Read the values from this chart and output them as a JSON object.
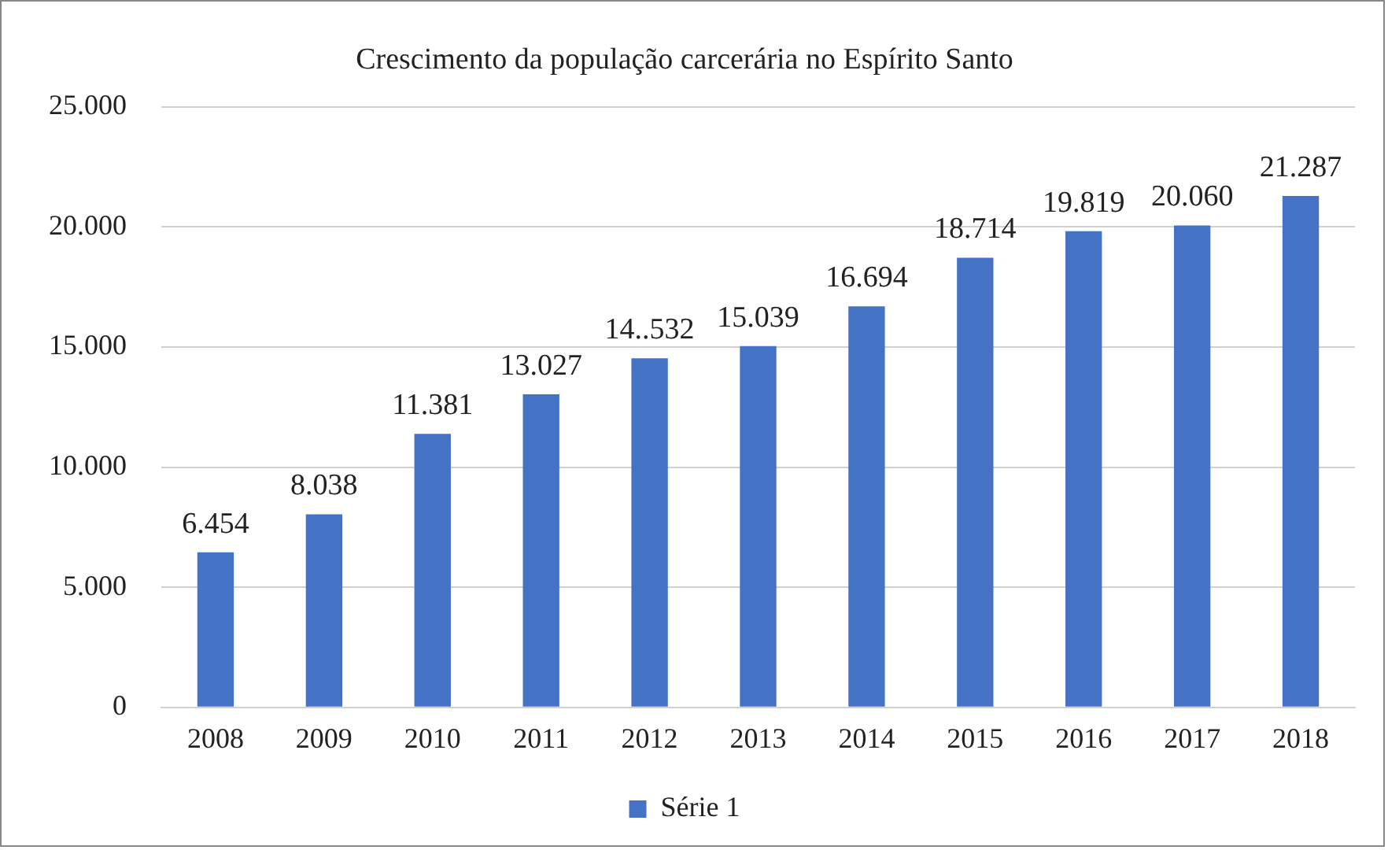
{
  "chart_data": {
    "type": "bar",
    "title": "Crescimento da população carcerária no Espírito Santo",
    "categories": [
      "2008",
      "2009",
      "2010",
      "2011",
      "2012",
      "2013",
      "2014",
      "2015",
      "2016",
      "2017",
      "2018"
    ],
    "series": [
      {
        "name": "Série 1",
        "color": "#4472c4",
        "values": [
          6454,
          8038,
          11381,
          13027,
          14532,
          15039,
          16694,
          18714,
          19819,
          20060,
          21287
        ],
        "value_labels": [
          "6.454",
          "8.038",
          "11.381",
          "13.027",
          "14..532",
          "15.039",
          "16.694",
          "18.714",
          "19.819",
          "20.060",
          "21.287"
        ]
      }
    ],
    "ylim": [
      0,
      25000
    ],
    "yticks": [
      0,
      {
        "value": 5000,
        "label": "5.000"
      },
      {
        "value": 10000,
        "label": "10.000"
      },
      {
        "value": 15000,
        "label": "15.000"
      },
      {
        "value": 20000,
        "label": "20.000"
      },
      {
        "value": 25000,
        "label": "25.000"
      }
    ],
    "grid": "y",
    "legend": "bottom"
  }
}
